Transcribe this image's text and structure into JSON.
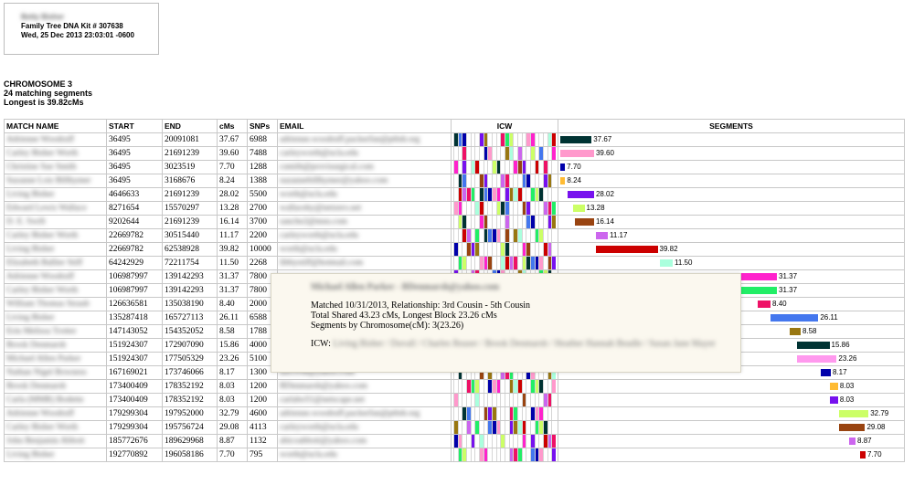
{
  "kit": {
    "name": "Betty Bisher",
    "kit_line": "Family Tree DNA Kit # 307638",
    "timestamp": "Wed, 25 Dec 2013 23:03:01 -0600"
  },
  "chromosome": {
    "title": "CHROMOSOME 3",
    "matching": "24 matching segments",
    "longest": "Longest is 39.82cMs"
  },
  "columns": {
    "name": "MATCH NAME",
    "start": "START",
    "end": "END",
    "cms": "cMs",
    "snps": "SNPs",
    "email": "EMAIL",
    "icw": "ICW",
    "segments": "SEGMENTS"
  },
  "rows": [
    {
      "name": "Adrienne Woodruff",
      "start": "36495",
      "end": "20091081",
      "cms": "37.67",
      "snps": "6988",
      "email": "adrienne.woodruff.packerfan@ptbdr.org",
      "seg_start": 36495,
      "seg_end": 20091081,
      "color": "#003333"
    },
    {
      "name": "Carley Bisher Worth",
      "start": "36495",
      "end": "21691239",
      "cms": "39.60",
      "snps": "7488",
      "email": "carleyworth@ucla.edu",
      "seg_start": 36495,
      "seg_end": 21691239,
      "color": "#ff99cc"
    },
    {
      "name": "Christine Sue Smith",
      "start": "36495",
      "end": "3023519",
      "cms": "7.70",
      "snps": "1288",
      "email": "csmith@provisurgical.com",
      "seg_start": 36495,
      "seg_end": 3023519,
      "color": "#0000aa"
    },
    {
      "name": "Suzanne Lois Billhymer",
      "start": "36495",
      "end": "3168676",
      "cms": "8.24",
      "snps": "1388",
      "email": "suzannebillhymer@yahoo.com",
      "seg_start": 36495,
      "seg_end": 3168676,
      "color": "#ffbb33"
    },
    {
      "name": "Living Bisher",
      "start": "4646633",
      "end": "21691239",
      "cms": "28.02",
      "snps": "5500",
      "email": "worth@ucla.edu",
      "seg_start": 4646633,
      "seg_end": 21691239,
      "color": "#7711ee"
    },
    {
      "name": "Edward Lewis Wallace",
      "start": "8271654",
      "end": "15570297",
      "cms": "13.28",
      "snps": "2700",
      "email": "wallaceky@netzero.net",
      "seg_start": 8271654,
      "seg_end": 15570297,
      "color": "#ccff66"
    },
    {
      "name": "D. E. Swift",
      "start": "9202644",
      "end": "21691239",
      "cms": "16.14",
      "snps": "3700",
      "email": "sanche2@msn.com",
      "seg_start": 9202644,
      "seg_end": 21691239,
      "color": "#994411"
    },
    {
      "name": "Carley Bisher Worth",
      "start": "22669782",
      "end": "30515440",
      "cms": "11.17",
      "snps": "2200",
      "email": "carleyworth@ucla.edu",
      "seg_start": 22669782,
      "seg_end": 30515440,
      "color": "#cc66ee"
    },
    {
      "name": "Living Bisher",
      "start": "22669782",
      "end": "62538928",
      "cms": "39.82",
      "snps": "10000",
      "email": "worth@ucla.edu",
      "seg_start": 22669782,
      "seg_end": 62538928,
      "color": "#cc0000"
    },
    {
      "name": "Elizabeth Ballier Stiff",
      "start": "64242929",
      "end": "72211754",
      "cms": "11.50",
      "snps": "2268",
      "email": "libbystiff@hotmail.com",
      "seg_start": 64242929,
      "seg_end": 72211754,
      "color": "#aaffdd"
    },
    {
      "name": "Adrienne Woodruff",
      "start": "106987997",
      "end": "139142293",
      "cms": "31.37",
      "snps": "7800",
      "email": "",
      "seg_start": 106987997,
      "seg_end": 139142293,
      "color": "#ff22cc"
    },
    {
      "name": "Carley Bisher Worth",
      "start": "106987997",
      "end": "139142293",
      "cms": "31.37",
      "snps": "7800",
      "email": "",
      "seg_start": 106987997,
      "seg_end": 139142293,
      "color": "#22ee66"
    },
    {
      "name": "William Thomas Straub",
      "start": "126636581",
      "end": "135038190",
      "cms": "8.40",
      "snps": "2000",
      "email": "",
      "seg_start": 126636581,
      "seg_end": 135038190,
      "color": "#ee1166"
    },
    {
      "name": "Living Bisher",
      "start": "135287418",
      "end": "165727113",
      "cms": "26.11",
      "snps": "6588",
      "email": "",
      "seg_start": 135287418,
      "seg_end": 165727113,
      "color": "#4477ee"
    },
    {
      "name": "Erin Melissa Trotter",
      "start": "147143052",
      "end": "154352052",
      "cms": "8.58",
      "snps": "1788",
      "email": "",
      "seg_start": 147143052,
      "seg_end": 154352052,
      "color": "#997711"
    },
    {
      "name": "Brook Denmarsh",
      "start": "151924307",
      "end": "172907090",
      "cms": "15.86",
      "snps": "4000",
      "email": "",
      "seg_start": 151924307,
      "seg_end": 172907090,
      "color": "#003333"
    },
    {
      "name": "Michael Allen Parker",
      "start": "151924307",
      "end": "177505329",
      "cms": "23.26",
      "snps": "5100",
      "email": "",
      "seg_start": 151924307,
      "seg_end": 177505329,
      "color": "#ff99ee"
    },
    {
      "name": "Nathan Nigel Bowness",
      "start": "167169021",
      "end": "173746066",
      "cms": "8.17",
      "snps": "1300",
      "email": "nlb1938@yahoo.com",
      "seg_start": 167169021,
      "seg_end": 173746066,
      "color": "#0000aa"
    },
    {
      "name": "Brook Denmarsh",
      "start": "173400409",
      "end": "178352192",
      "cms": "8.03",
      "snps": "1200",
      "email": "BDenmarsh@yahoo.com",
      "seg_start": 173400409,
      "seg_end": 178352192,
      "color": "#ffbb33"
    },
    {
      "name": "Carla (MMR) Bodette",
      "start": "173400409",
      "end": "178352192",
      "cms": "8.03",
      "snps": "1200",
      "email": "carlabo51@netscape.net",
      "seg_start": 173400409,
      "seg_end": 178352192,
      "color": "#7711ee"
    },
    {
      "name": "Adrienne Woodruff",
      "start": "179299304",
      "end": "197952000",
      "cms": "32.79",
      "snps": "4600",
      "email": "adrienne.woodruff.packerfan@ptbdr.org",
      "seg_start": 179299304,
      "seg_end": 197952000,
      "color": "#ccff66"
    },
    {
      "name": "Carley Bisher Worth",
      "start": "179299304",
      "end": "195756724",
      "cms": "29.08",
      "snps": "4113",
      "email": "carleyworth@ucla.edu",
      "seg_start": 179299304,
      "seg_end": 195756724,
      "color": "#994411"
    },
    {
      "name": "John Benjamin Abbott",
      "start": "185772676",
      "end": "189629968",
      "cms": "8.87",
      "snps": "1132",
      "email": "abicoabbott@yahoo.com",
      "seg_start": 185772676,
      "seg_end": 189629968,
      "color": "#cc66ee"
    },
    {
      "name": "Living Bisher",
      "start": "192770892",
      "end": "196058186",
      "cms": "7.70",
      "snps": "795",
      "email": "worth@ucla.edu",
      "seg_start": 192770892,
      "seg_end": 196058186,
      "color": "#cc0000"
    }
  ],
  "chromosome_length": 199000000,
  "icw_palette": [
    "#003333",
    "#ff99cc",
    "#7711ee",
    "#cc0000",
    "#22ee66",
    "#4477ee",
    "#ff22cc",
    "#997711",
    "#cc66ee",
    "#ccff66",
    "#0000aa",
    "#994411",
    "#aaffdd",
    "#ee1166"
  ],
  "popup": {
    "name": "Michael Allen Parker - BDenmarsh@yahoo.com",
    "matched": "Matched 10/31/2013, Relationship: 3rd Cousin - 5th Cousin",
    "shared": "Total Shared 43.23 cMs, Longest Block 23.26 cMs",
    "segments": "Segments by Chromosome(cM): 3(23.26)",
    "icw_label": "ICW:",
    "icw_names": "Living Bisher / Duvall / Charles Reaser / Brook Denmarsh / Heather Hannah Beadle / Susan Jane Mayer"
  }
}
